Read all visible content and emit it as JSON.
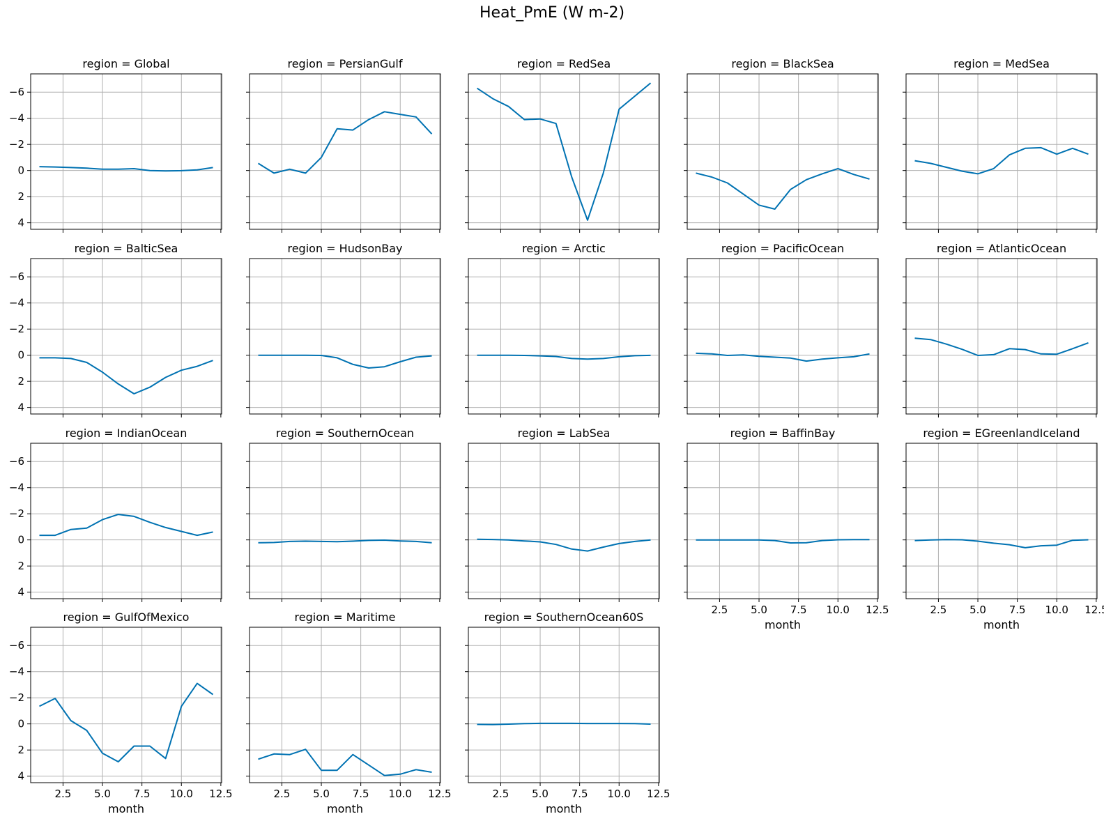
{
  "title": "Heat_PmE (W m-2)",
  "chart_data": {
    "type": "line",
    "facet_label": "region",
    "xlabel": "month",
    "ylabel": "",
    "xlim": [
      0.45,
      12.55
    ],
    "ylim": [
      4.5,
      -7.4
    ],
    "y_inverted": true,
    "xticks": [
      2.5,
      5.0,
      7.5,
      10.0,
      12.5
    ],
    "xtick_labels": [
      "2.5",
      "5.0",
      "7.5",
      "10.0",
      "12.5"
    ],
    "yticks": [
      -6,
      -4,
      -2,
      0,
      2,
      4
    ],
    "ytick_labels": [
      "−6",
      "−4",
      "−2",
      "0",
      "2",
      "4"
    ],
    "grid": true,
    "line_color": "#0072b2",
    "x": [
      1,
      2,
      3,
      4,
      5,
      6,
      7,
      8,
      9,
      10,
      11,
      12
    ],
    "panels": [
      {
        "region": "Global",
        "values": [
          -0.3,
          -0.27,
          -0.23,
          -0.18,
          -0.1,
          -0.1,
          -0.14,
          0,
          0.03,
          0.01,
          -0.05,
          -0.23
        ]
      },
      {
        "region": "PersianGulf",
        "values": [
          -0.55,
          0.2,
          -0.1,
          0.2,
          -1.0,
          -3.2,
          -3.1,
          -3.9,
          -4.5,
          -4.3,
          -4.1,
          -2.8
        ]
      },
      {
        "region": "RedSea",
        "values": [
          -6.3,
          -5.5,
          -4.9,
          -3.9,
          -3.95,
          -3.6,
          0.5,
          3.8,
          0.2,
          -4.7,
          -5.7,
          -6.7
        ]
      },
      {
        "region": "BlackSea",
        "values": [
          0.2,
          0.5,
          0.95,
          1.8,
          2.65,
          2.95,
          1.45,
          0.7,
          0.25,
          -0.15,
          0.3,
          0.65
        ]
      },
      {
        "region": "MedSea",
        "values": [
          -0.75,
          -0.55,
          -0.25,
          0.05,
          0.25,
          -0.15,
          -1.2,
          -1.7,
          -1.75,
          -1.25,
          -1.7,
          -1.25
        ]
      },
      {
        "region": "BalticSea",
        "values": [
          0.2,
          0.2,
          0.25,
          0.55,
          1.3,
          2.2,
          2.95,
          2.45,
          1.7,
          1.15,
          0.85,
          0.4
        ]
      },
      {
        "region": "HudsonBay",
        "values": [
          0,
          0,
          0,
          0,
          0.02,
          0.2,
          0.7,
          0.98,
          0.88,
          0.5,
          0.15,
          0.05
        ]
      },
      {
        "region": "Arctic",
        "values": [
          0,
          0,
          0,
          0.02,
          0.05,
          0.1,
          0.25,
          0.3,
          0.25,
          0.12,
          0.04,
          0.01
        ]
      },
      {
        "region": "PacificOcean",
        "values": [
          -0.15,
          -0.1,
          0.02,
          -0.02,
          0.08,
          0.15,
          0.22,
          0.45,
          0.3,
          0.2,
          0.12,
          -0.1
        ]
      },
      {
        "region": "AtlanticOcean",
        "values": [
          -1.3,
          -1.2,
          -0.85,
          -0.45,
          0.02,
          -0.04,
          -0.5,
          -0.43,
          -0.1,
          -0.08,
          -0.5,
          -0.95
        ]
      },
      {
        "region": "IndianOcean",
        "values": [
          -0.35,
          -0.35,
          -0.8,
          -0.9,
          -1.55,
          -1.95,
          -1.8,
          -1.35,
          -0.95,
          -0.65,
          -0.35,
          -0.6
        ]
      },
      {
        "region": "SouthernOcean",
        "values": [
          0.22,
          0.2,
          0.12,
          0.1,
          0.12,
          0.14,
          0.1,
          0.04,
          0.02,
          0.08,
          0.12,
          0.22
        ]
      },
      {
        "region": "LabSea",
        "values": [
          -0.05,
          -0.03,
          0,
          0.08,
          0.15,
          0.35,
          0.7,
          0.85,
          0.55,
          0.28,
          0.12,
          0
        ]
      },
      {
        "region": "BaffinBay",
        "values": [
          0,
          0,
          0,
          0,
          0,
          0.05,
          0.23,
          0.22,
          0.05,
          -0.01,
          -0.02,
          -0.02
        ]
      },
      {
        "region": "EGreenlandIceland",
        "values": [
          0.05,
          0,
          -0.02,
          -0.01,
          0.1,
          0.25,
          0.37,
          0.6,
          0.45,
          0.4,
          0.03,
          -0.01
        ]
      },
      {
        "region": "GulfOfMexico",
        "values": [
          -1.35,
          -1.95,
          -0.25,
          0.5,
          2.25,
          2.9,
          1.7,
          1.7,
          2.65,
          -1.35,
          -3.1,
          -2.25
        ]
      },
      {
        "region": "Maritime",
        "values": [
          2.7,
          2.3,
          2.35,
          1.95,
          3.55,
          3.55,
          2.35,
          3.15,
          3.95,
          3.85,
          3.5,
          3.7
        ]
      },
      {
        "region": "SouthernOcean60S",
        "values": [
          0.04,
          0.05,
          0.02,
          -0.02,
          -0.04,
          -0.04,
          -0.04,
          -0.03,
          -0.03,
          -0.03,
          -0.02,
          0.02
        ]
      }
    ]
  }
}
